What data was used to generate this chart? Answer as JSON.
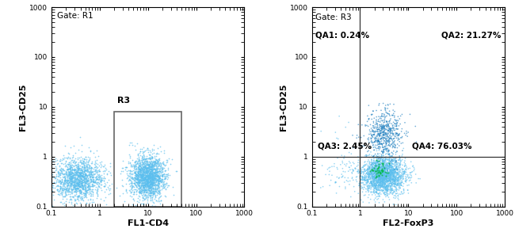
{
  "panel1": {
    "gate_label": "Gate: R1",
    "r3_label": "R3",
    "xlabel": "FL1-CD4",
    "ylabel": "FL3-CD25",
    "xlim": [
      0.1,
      1000
    ],
    "ylim": [
      0.1,
      1000
    ],
    "gate_x_lo": 2.0,
    "gate_x_hi": 50.0,
    "gate_y_lo": 0.1,
    "gate_y_hi": 8.0,
    "cluster1_n": 1500,
    "cluster2_n": 1800,
    "dot_color": "#5bbfee",
    "dot_size": 1.5
  },
  "panel2": {
    "gate_label": "Gate: R3",
    "qa1_label": "QA1: 0.24%",
    "qa2_label": "QA2: 21.27%",
    "qa3_label": "QA3: 2.45%",
    "qa4_label": "QA4: 76.03%",
    "xlabel": "FL2-FoxP3",
    "ylabel": "FL3-CD25",
    "xlim": [
      0.1,
      1000
    ],
    "ylim": [
      0.1,
      1000
    ],
    "div_x": 1.0,
    "div_y": 1.0,
    "dot_color": "#5bbfee",
    "dot_color_dark": "#2080c0",
    "dot_color_green": "#00bb44",
    "dot_size": 1.5
  },
  "background_color": "#ffffff",
  "gate_line_color": "#666666",
  "divider_line_color": "#333333"
}
